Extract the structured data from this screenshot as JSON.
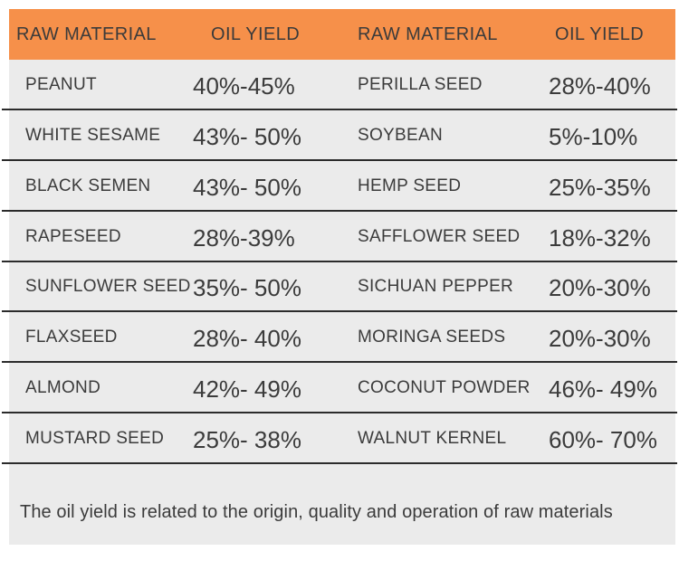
{
  "chart_data": {
    "type": "table",
    "columns": [
      "RAW MATERIAL",
      "OIL YIELD",
      "RAW MATERIAL",
      "OIL YIELD"
    ],
    "rows": [
      [
        "PEANUT",
        "40%-45%",
        "PERILLA SEED",
        "28%-40%"
      ],
      [
        "WHITE SESAME",
        "43%- 50%",
        "SOYBEAN",
        "5%-10%"
      ],
      [
        "BLACK SEMEN",
        "43%- 50%",
        "HEMP SEED",
        "25%-35%"
      ],
      [
        "RAPESEED",
        "28%-39%",
        "SAFFLOWER SEED",
        "18%-32%"
      ],
      [
        "SUNFLOWER SEED",
        "35%- 50%",
        "SICHUAN PEPPER",
        "20%-30%"
      ],
      [
        "FLAXSEED",
        "28%- 40%",
        "MORINGA SEEDS",
        "20%-30%"
      ],
      [
        "ALMOND",
        "42%- 49%",
        "COCONUT POWDER",
        "46%- 49%"
      ],
      [
        "MUSTARD SEED",
        "25%- 38%",
        "WALNUT KERNEL",
        "60%- 70%"
      ]
    ],
    "note": "The oil yield is related to the origin, quality and operation of raw materials",
    "layout": {
      "legend": "none",
      "grid": "horizontal-dividers"
    }
  },
  "colors": {
    "header_bg": "#F6904A",
    "header_text": "#FBF4EB",
    "row_bg": "#EBEBEB",
    "divider": "#2B2B2B",
    "text": "#3B3B3B",
    "page_bg": "#FFFFFF"
  }
}
